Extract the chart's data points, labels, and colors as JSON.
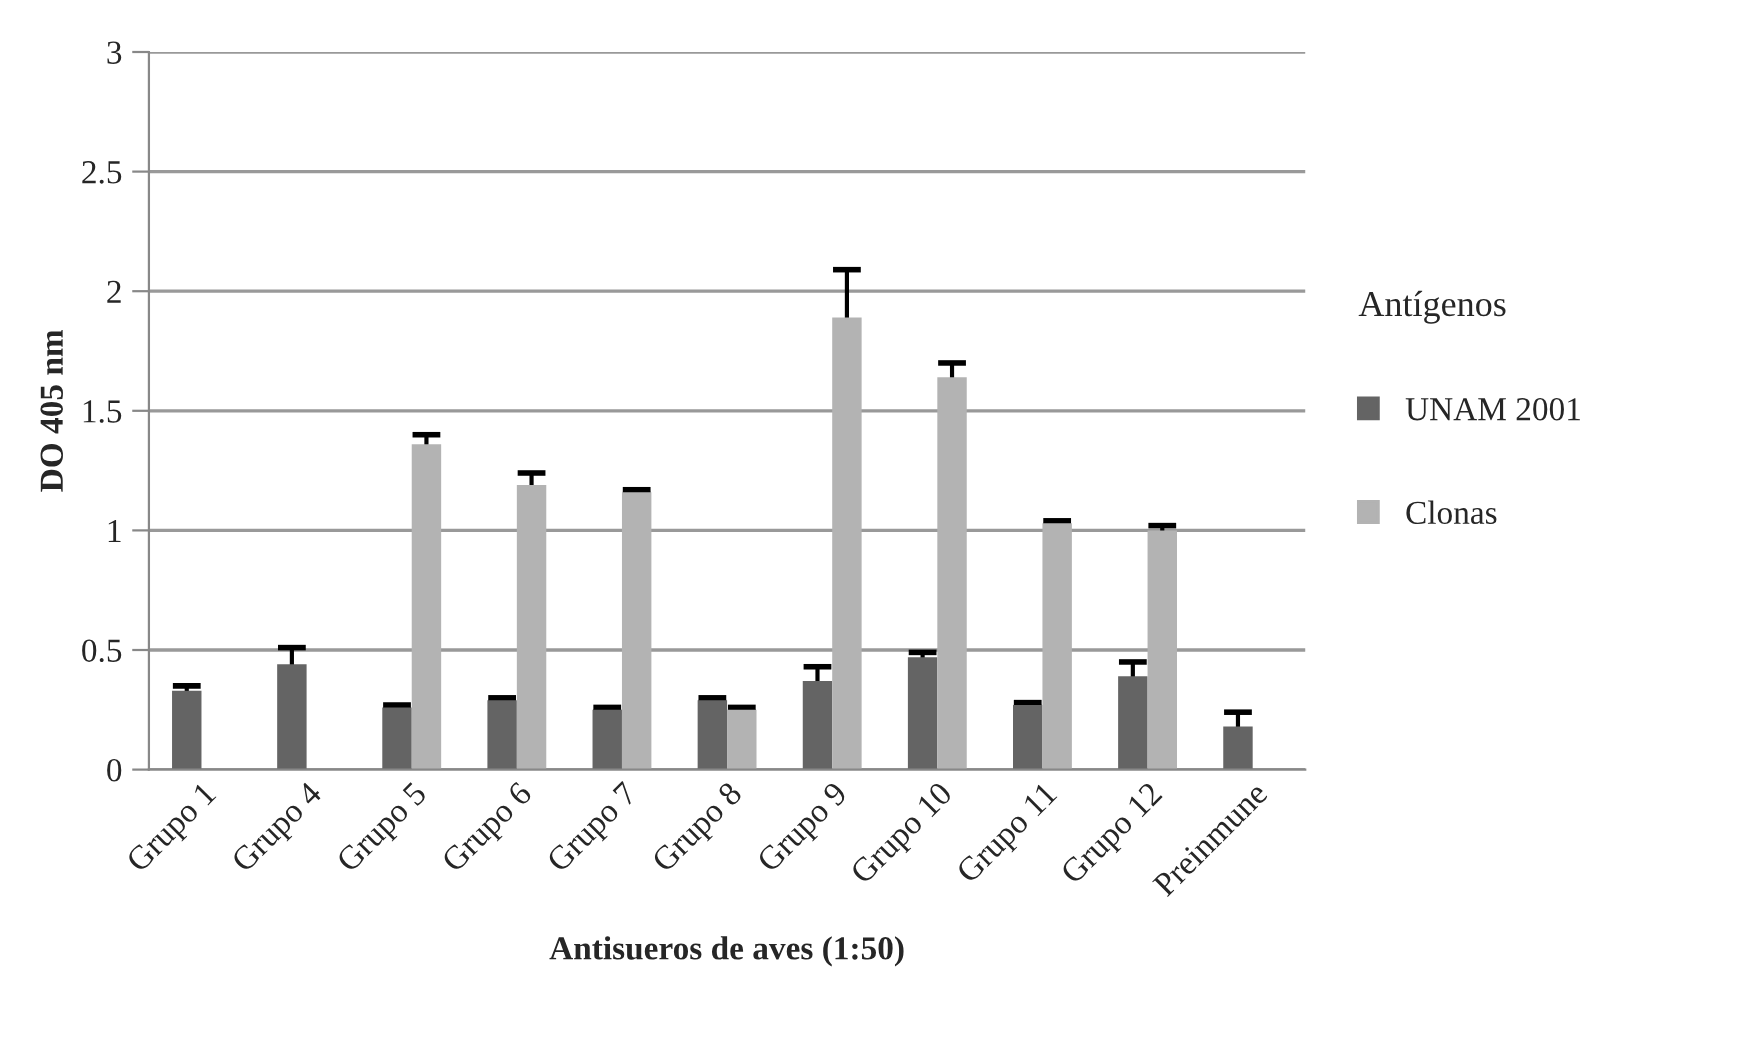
{
  "chart_data": {
    "type": "bar",
    "xlabel": "Antisueros de aves (1:50)",
    "ylabel": "DO 405 nm",
    "legend_title": "Antígenos",
    "categories": [
      "Grupo 1",
      "Grupo 4",
      "Grupo 5",
      "Grupo 6",
      "Grupo 7",
      "Grupo 8",
      "Grupo 9",
      "Grupo 10",
      "Grupo 11",
      "Grupo 12",
      "Preinmune"
    ],
    "series": [
      {
        "name": "UNAM 2001",
        "color": "#646464",
        "values": [
          0.33,
          0.44,
          0.26,
          0.29,
          0.25,
          0.29,
          0.37,
          0.47,
          0.27,
          0.39,
          0.18
        ],
        "errors": [
          0.02,
          0.07,
          0.01,
          0.01,
          0.01,
          0.01,
          0.06,
          0.02,
          0.01,
          0.06,
          0.06
        ]
      },
      {
        "name": "Clonas",
        "color": "#b3b3b3",
        "values": [
          null,
          null,
          1.36,
          1.19,
          1.16,
          0.25,
          1.89,
          1.64,
          1.03,
          1.0,
          null
        ],
        "errors": [
          null,
          null,
          0.04,
          0.05,
          0.01,
          0.01,
          0.2,
          0.06,
          0.01,
          0.02,
          null
        ]
      }
    ],
    "ylim": [
      0,
      3
    ],
    "yticks": [
      0,
      0.5,
      1,
      1.5,
      2,
      2.5,
      3
    ],
    "grid": "y",
    "legend": "right"
  }
}
